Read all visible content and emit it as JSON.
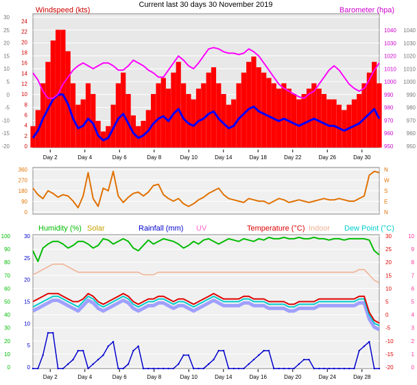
{
  "title": "Current last 30 days 30 November 2019",
  "colors": {
    "wind": "#ff0000",
    "gust": "#0000ff",
    "baro": "#ff00ff",
    "grey": "#b4b4b4",
    "dir": "#e07000",
    "humidity": "#00bb00",
    "solar": "#c8a000",
    "rain": "#0000cc",
    "uv": "#ff66cc",
    "temp": "#dd0000",
    "indoor": "#f0b090",
    "dew": "#00cccc",
    "heatband": "#a0a0ff",
    "axis_left_top": "#cc0000",
    "axis_right_top": "#cc00cc",
    "axis_left_bottom": "#00bb00",
    "axis_right_bottom": "#ff3399"
  },
  "chart_data": [
    {
      "type": "line",
      "left_label": "Windspeed (kts)",
      "right_label": "Barometer (hpa)",
      "left_ticks": [
        "24",
        "22",
        "20",
        "18",
        "16",
        "14",
        "12",
        "10",
        "8",
        "6",
        "4",
        "2",
        "0"
      ],
      "outer_left_ticks": [
        "30",
        "25",
        "20",
        "15",
        "10",
        "5",
        "0",
        "-5",
        "-10",
        "-15",
        "-20"
      ],
      "right_ticks": [
        "1040",
        "1030",
        "1020",
        "1010",
        "1000",
        "990",
        "980",
        "970",
        "960",
        "950"
      ],
      "outer_right_ticks": [
        "1040",
        "1030",
        "1020",
        "1010",
        "1000",
        "990",
        "980",
        "970",
        "960",
        "950"
      ],
      "x_ticks": [
        "Day 2",
        "Day 4",
        "Day 6",
        "Day 8",
        "Day 10",
        "Day 14",
        "Day 18",
        "Day 22",
        "Day 26",
        "Day 30"
      ],
      "ylim_left": [
        0,
        25
      ],
      "ylim_right": [
        950,
        1045
      ],
      "series": [
        {
          "name": "Windspeed (kts)",
          "values": [
            4,
            7,
            12,
            16,
            20,
            22,
            22,
            18,
            12,
            8,
            9,
            12,
            10,
            5,
            3,
            4,
            8,
            12,
            14,
            10,
            6,
            4,
            5,
            7,
            10,
            12,
            13,
            11,
            14,
            16,
            12,
            10,
            9,
            11,
            12,
            14,
            15,
            12,
            10,
            8,
            9,
            12,
            14,
            16,
            17,
            15,
            14,
            13,
            12,
            11,
            12,
            11,
            10,
            9,
            10,
            11,
            12,
            11,
            10,
            9,
            9,
            8,
            7,
            8,
            9,
            10,
            12,
            14,
            16,
            12
          ]
        },
        {
          "name": "Barometer (hpa)",
          "values": [
            1003,
            998,
            990,
            985,
            985,
            988,
            995,
            1000,
            1005,
            1008,
            1010,
            1008,
            1006,
            1008,
            1010,
            1010,
            1008,
            1005,
            1005,
            1008,
            1012,
            1010,
            1008,
            1005,
            1003,
            1000,
            1000,
            1005,
            1010,
            1015,
            1012,
            1008,
            1006,
            1010,
            1015,
            1020,
            1021,
            1020,
            1018,
            1017,
            1017,
            1016,
            1017,
            1020,
            1018,
            1015,
            1010,
            1005,
            1000,
            995,
            992,
            990,
            988,
            986,
            985,
            988,
            990,
            995,
            1000,
            1005,
            1008,
            1005,
            1000,
            995,
            992,
            990,
            992,
            998,
            1005,
            1010
          ]
        }
      ]
    },
    {
      "type": "line",
      "left_ticks": [
        "360",
        "270",
        "180",
        "90",
        "0"
      ],
      "right_ticks": [
        "N",
        "W",
        "S",
        "E",
        "N"
      ],
      "ylim": [
        0,
        360
      ],
      "series": [
        {
          "name": "Wind direction",
          "values": [
            200,
            150,
            120,
            180,
            160,
            130,
            150,
            140,
            100,
            50,
            140,
            320,
            120,
            60,
            200,
            180,
            330,
            140,
            90,
            130,
            160,
            170,
            140,
            170,
            220,
            230,
            150,
            120,
            100,
            120,
            80,
            60,
            80,
            110,
            130,
            160,
            180,
            200,
            150,
            120,
            110,
            100,
            90,
            120,
            110,
            100,
            100,
            80,
            100,
            120,
            110,
            90,
            100,
            110,
            100,
            90,
            100,
            110,
            120,
            110,
            110,
            120,
            110,
            100,
            100,
            120,
            140,
            300,
            330,
            320
          ]
        }
      ]
    },
    {
      "type": "line",
      "legend": [
        "Humidity (%)",
        "Solar",
        "Rainfall (mm)",
        "UV",
        "Temperature (°C)",
        "Indoor",
        "Dew Point (°C)"
      ],
      "left_ticks": [
        "100",
        "90",
        "80",
        "70",
        "60",
        "50",
        "40",
        "30",
        "20",
        "10",
        "0"
      ],
      "inner_left_ticks": [
        "30",
        "25",
        "20",
        "15",
        "10",
        "5",
        "0"
      ],
      "right_ticks": [
        "30",
        "25",
        "20",
        "15",
        "10",
        "5",
        "0",
        "-5",
        "-10",
        "-15",
        "-20"
      ],
      "outer_right_ticks": [
        "10",
        "9",
        "8",
        "7",
        "6",
        "5",
        "4",
        "3",
        "2",
        "1",
        "0"
      ],
      "x_ticks": [
        "Day 2",
        "Day 4",
        "Day 6",
        "Day 8",
        "Day 10",
        "Day 14",
        "Day 16",
        "Day 20",
        "Day 24",
        "Day 28"
      ],
      "ylim_left": [
        0,
        100
      ],
      "ylim_right": [
        -20,
        30
      ],
      "ylim_inner": [
        0,
        30
      ],
      "series": [
        {
          "name": "Humidity (%)",
          "values": [
            88,
            80,
            90,
            93,
            95,
            95,
            93,
            90,
            92,
            95,
            95,
            93,
            90,
            92,
            97,
            96,
            93,
            95,
            97,
            95,
            90,
            88,
            92,
            96,
            93,
            95,
            97,
            96,
            95,
            93,
            90,
            92,
            95,
            93,
            96,
            97,
            95,
            93,
            95,
            97,
            96,
            95,
            97,
            96,
            95,
            97,
            96,
            98,
            97,
            97,
            98,
            97,
            97,
            98,
            97,
            97,
            98,
            97,
            97,
            96,
            97,
            97,
            96,
            97,
            97,
            97,
            97,
            96,
            88,
            85
          ]
        },
        {
          "name": "Temperature (°C)",
          "values": [
            5,
            6,
            7,
            8,
            8,
            8,
            7,
            6,
            5,
            5,
            6,
            8,
            7,
            5,
            4,
            5,
            6,
            7,
            8,
            7,
            5,
            4,
            5,
            6,
            6,
            7,
            7,
            6,
            5,
            6,
            6,
            5,
            4,
            5,
            6,
            7,
            8,
            7,
            6,
            6,
            6,
            6,
            7,
            7,
            6,
            6,
            6,
            5,
            5,
            5,
            5,
            4,
            4,
            5,
            5,
            5,
            5,
            6,
            6,
            6,
            6,
            6,
            6,
            6,
            6,
            7,
            7,
            1,
            -2,
            -3
          ]
        },
        {
          "name": "Indoor",
          "values": [
            15,
            16,
            17,
            18,
            19,
            19,
            19,
            18,
            17,
            16,
            16,
            16,
            16,
            16,
            16,
            16,
            16,
            16,
            16,
            16,
            16,
            16,
            15,
            15,
            15,
            16,
            16,
            16,
            16,
            16,
            16,
            16,
            16,
            16,
            16,
            16,
            16,
            16,
            16,
            16,
            16,
            16,
            16,
            16,
            16,
            16,
            16,
            16,
            16,
            16,
            16,
            16,
            16,
            16,
            16,
            16,
            16,
            16,
            16,
            16,
            16,
            16,
            16,
            16,
            16,
            17,
            17,
            15,
            13,
            12
          ]
        },
        {
          "name": "Dew Point (°C)",
          "values": [
            3,
            4,
            5,
            6,
            7,
            7,
            6,
            5,
            4,
            3,
            5,
            7,
            6,
            4,
            3,
            4,
            5,
            6,
            7,
            6,
            4,
            3,
            4,
            5,
            5,
            6,
            6,
            5,
            4,
            5,
            5,
            4,
            3,
            4,
            5,
            6,
            7,
            6,
            5,
            5,
            5,
            5,
            6,
            6,
            5,
            5,
            5,
            4,
            4,
            4,
            4,
            3,
            3,
            4,
            4,
            4,
            4,
            5,
            5,
            5,
            5,
            5,
            5,
            5,
            5,
            6,
            6,
            0,
            -3,
            -4
          ]
        },
        {
          "name": "Rainfall (mm)",
          "values": [
            0,
            0,
            3,
            8,
            8,
            0,
            0,
            1,
            2,
            4,
            4,
            0,
            1,
            2,
            3,
            5,
            6,
            0,
            0,
            1,
            4,
            5,
            0,
            0,
            0,
            0,
            0,
            0,
            0,
            1,
            3,
            3,
            0,
            0,
            0,
            1,
            2,
            4,
            4,
            0,
            0,
            0,
            0,
            1,
            2,
            3,
            4,
            4,
            0,
            0,
            0,
            0,
            0,
            1,
            2,
            2,
            0,
            0,
            0,
            0,
            0,
            0,
            0,
            0,
            0,
            4,
            5,
            6,
            0,
            0
          ]
        }
      ]
    }
  ]
}
